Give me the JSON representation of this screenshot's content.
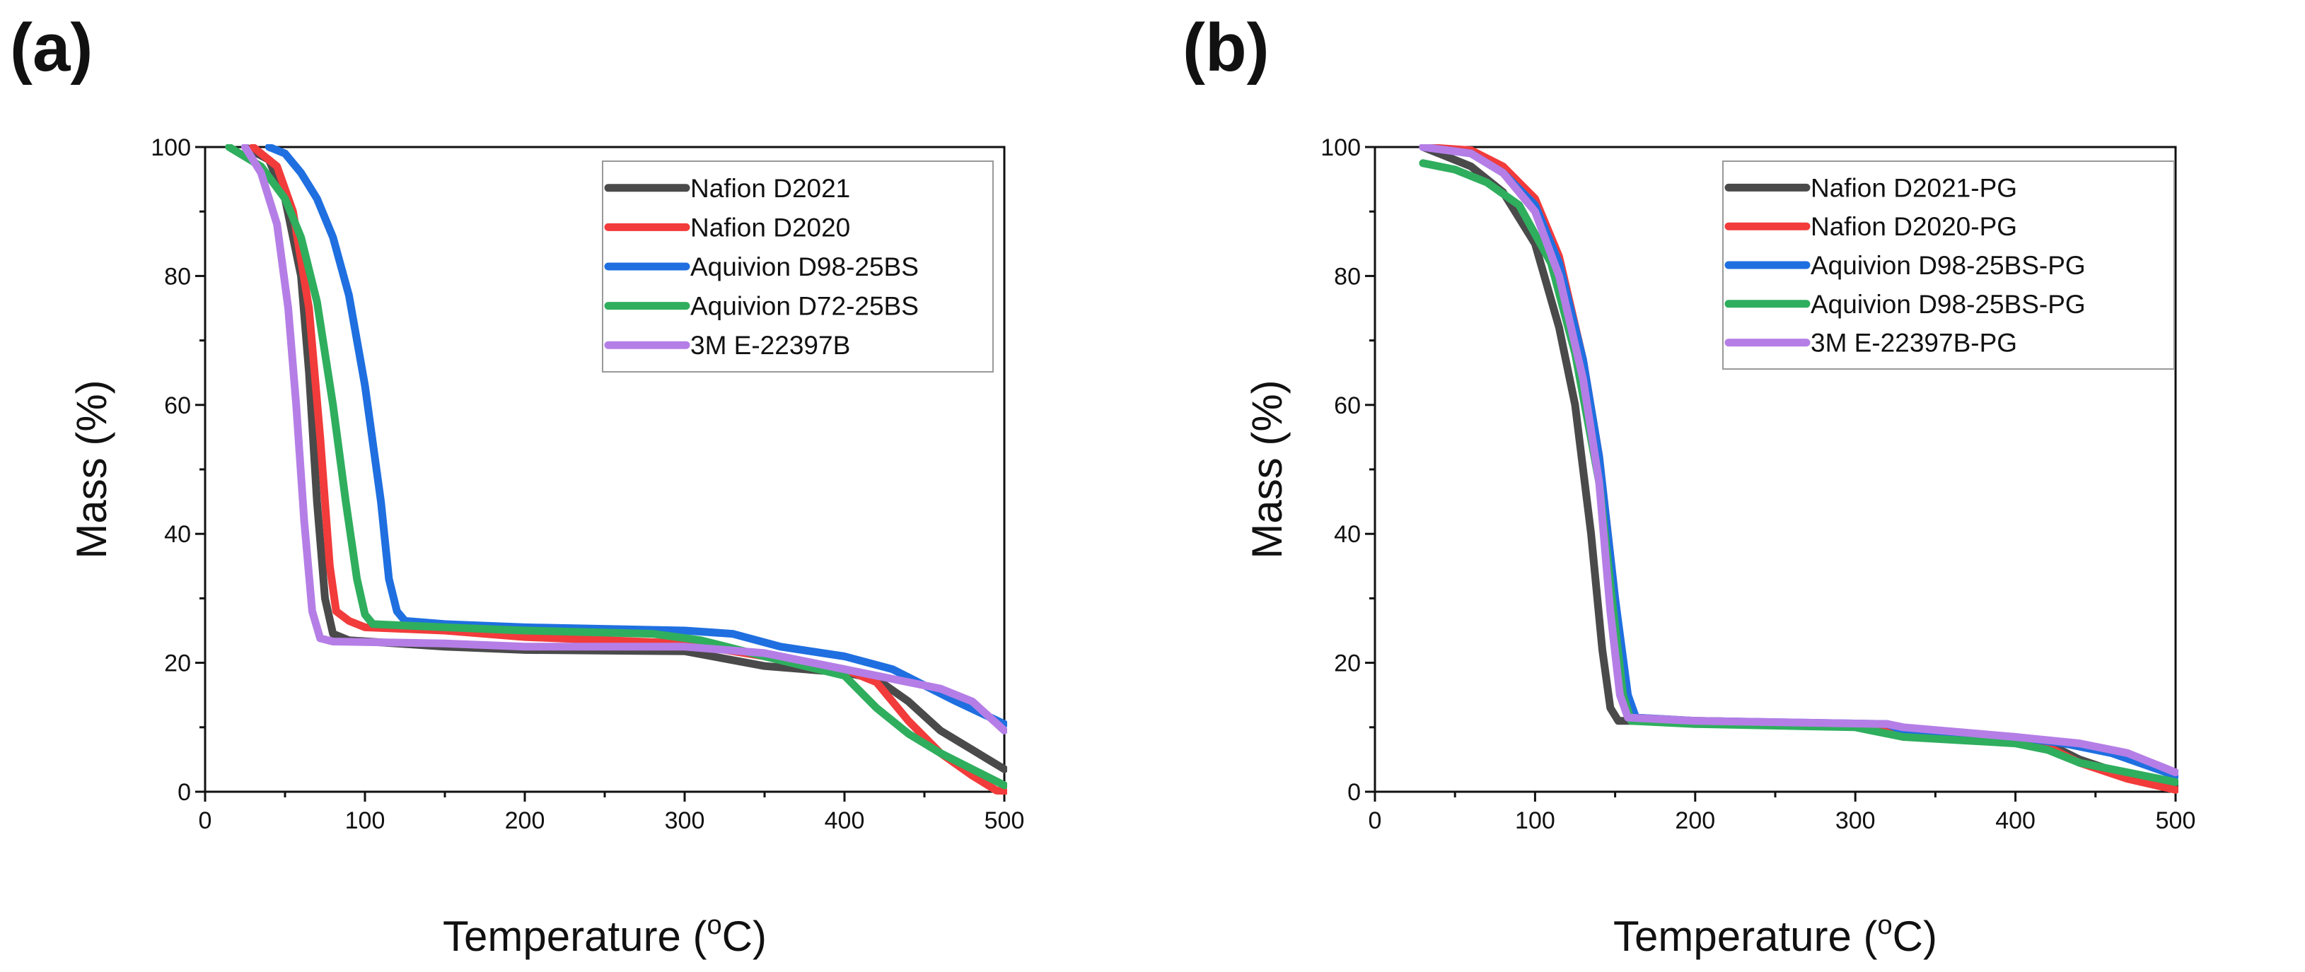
{
  "chart_data": [
    {
      "type": "line",
      "panel_label": "(a)",
      "xlabel": "Temperature (",
      "xlabel_sup": "o",
      "xlabel_unit": "C)",
      "ylabel": "Mass (%)",
      "xlim": [
        0,
        500
      ],
      "ylim": [
        0,
        100
      ],
      "xticks": [
        0,
        100,
        200,
        300,
        400,
        500
      ],
      "yticks": [
        0,
        20,
        40,
        60,
        80,
        100
      ],
      "grid": false,
      "legend_position": "top-right",
      "series": [
        {
          "name": "Nafion D2021",
          "color": "#4a4a4a",
          "points": [
            [
              25,
              100
            ],
            [
              40,
              98
            ],
            [
              50,
              92
            ],
            [
              60,
              80
            ],
            [
              65,
              65
            ],
            [
              70,
              45
            ],
            [
              75,
              30
            ],
            [
              80,
              24.5
            ],
            [
              90,
              23.5
            ],
            [
              150,
              22.5
            ],
            [
              200,
              22
            ],
            [
              300,
              21.8
            ],
            [
              350,
              19.5
            ],
            [
              400,
              18.5
            ],
            [
              420,
              17.5
            ],
            [
              440,
              14
            ],
            [
              460,
              9.5
            ],
            [
              480,
              6.5
            ],
            [
              500,
              3.5
            ]
          ]
        },
        {
          "name": "Nafion D2020",
          "color": "#f23b3b",
          "points": [
            [
              30,
              100
            ],
            [
              45,
              97
            ],
            [
              55,
              90
            ],
            [
              65,
              75
            ],
            [
              72,
              55
            ],
            [
              78,
              35
            ],
            [
              82,
              28
            ],
            [
              90,
              26.5
            ],
            [
              100,
              25.5
            ],
            [
              150,
              25
            ],
            [
              200,
              24
            ],
            [
              300,
              23
            ],
            [
              350,
              21
            ],
            [
              400,
              19
            ],
            [
              420,
              17
            ],
            [
              440,
              11
            ],
            [
              460,
              6
            ],
            [
              480,
              2.5
            ],
            [
              495,
              0.2
            ],
            [
              500,
              0
            ]
          ]
        },
        {
          "name": "Aquivion D98-25BS",
          "color": "#1f6fe0",
          "points": [
            [
              40,
              100
            ],
            [
              50,
              99
            ],
            [
              60,
              96
            ],
            [
              70,
              92
            ],
            [
              80,
              86
            ],
            [
              90,
              77
            ],
            [
              100,
              63
            ],
            [
              110,
              45
            ],
            [
              115,
              33
            ],
            [
              120,
              28
            ],
            [
              125,
              26.5
            ],
            [
              150,
              26
            ],
            [
              200,
              25.5
            ],
            [
              300,
              25
            ],
            [
              330,
              24.5
            ],
            [
              360,
              22.5
            ],
            [
              400,
              21
            ],
            [
              430,
              19
            ],
            [
              450,
              16.5
            ],
            [
              470,
              14
            ],
            [
              500,
              10.5
            ]
          ]
        },
        {
          "name": "Aquivion D72-25BS",
          "color": "#2fae5e",
          "points": [
            [
              15,
              100
            ],
            [
              25,
              98.5
            ],
            [
              35,
              97
            ],
            [
              50,
              92
            ],
            [
              60,
              86
            ],
            [
              70,
              76
            ],
            [
              80,
              60
            ],
            [
              88,
              45
            ],
            [
              95,
              33
            ],
            [
              100,
              27.5
            ],
            [
              105,
              26
            ],
            [
              150,
              25.5
            ],
            [
              200,
              25
            ],
            [
              280,
              24.5
            ],
            [
              310,
              23.5
            ],
            [
              350,
              21
            ],
            [
              400,
              18
            ],
            [
              420,
              13
            ],
            [
              440,
              9
            ],
            [
              460,
              6
            ],
            [
              480,
              3.5
            ],
            [
              500,
              1
            ]
          ]
        },
        {
          "name": "3M E-22397B",
          "color": "#b57ee6",
          "points": [
            [
              25,
              100
            ],
            [
              35,
              96
            ],
            [
              45,
              88
            ],
            [
              52,
              75
            ],
            [
              57,
              60
            ],
            [
              62,
              42
            ],
            [
              67,
              28
            ],
            [
              72,
              23.8
            ],
            [
              80,
              23.3
            ],
            [
              150,
              23
            ],
            [
              200,
              22.5
            ],
            [
              300,
              22.5
            ],
            [
              350,
              21.5
            ],
            [
              400,
              19
            ],
            [
              440,
              17
            ],
            [
              460,
              16
            ],
            [
              480,
              14
            ],
            [
              500,
              9.5
            ]
          ]
        }
      ]
    },
    {
      "type": "line",
      "panel_label": "(b)",
      "xlabel": "Temperature (",
      "xlabel_sup": "o",
      "xlabel_unit": "C)",
      "ylabel": "Mass (%)",
      "xlim": [
        0,
        500
      ],
      "ylim": [
        0,
        100
      ],
      "xticks": [
        0,
        100,
        200,
        300,
        400,
        500
      ],
      "yticks": [
        0,
        20,
        40,
        60,
        80,
        100
      ],
      "grid": false,
      "legend_position": "top-right",
      "series": [
        {
          "name": "Nafion D2021-PG",
          "color": "#4a4a4a",
          "points": [
            [
              30,
              100
            ],
            [
              60,
              97
            ],
            [
              80,
              93
            ],
            [
              100,
              85
            ],
            [
              115,
              72
            ],
            [
              125,
              60
            ],
            [
              135,
              40
            ],
            [
              142,
              22
            ],
            [
              147,
              13
            ],
            [
              152,
              11
            ],
            [
              170,
              11
            ],
            [
              200,
              11
            ],
            [
              300,
              10.5
            ],
            [
              320,
              10
            ],
            [
              330,
              9
            ],
            [
              400,
              8
            ],
            [
              420,
              7.5
            ],
            [
              440,
              5
            ],
            [
              470,
              2.5
            ],
            [
              500,
              1
            ]
          ]
        },
        {
          "name": "Nafion D2020-PG",
          "color": "#f23b3b",
          "points": [
            [
              30,
              100
            ],
            [
              60,
              99.5
            ],
            [
              80,
              97
            ],
            [
              100,
              92
            ],
            [
              115,
              83
            ],
            [
              130,
              67
            ],
            [
              140,
              52
            ],
            [
              150,
              30
            ],
            [
              157,
              15
            ],
            [
              162,
              11.5
            ],
            [
              200,
              11
            ],
            [
              300,
              10.5
            ],
            [
              330,
              9
            ],
            [
              400,
              8
            ],
            [
              420,
              7
            ],
            [
              440,
              4.5
            ],
            [
              470,
              2
            ],
            [
              500,
              0.3
            ]
          ]
        },
        {
          "name": "Aquivion D98-25BS-PG",
          "color": "#1f6fe0",
          "points": [
            [
              30,
              100
            ],
            [
              60,
              99
            ],
            [
              80,
              96
            ],
            [
              100,
              91
            ],
            [
              115,
              82
            ],
            [
              130,
              67
            ],
            [
              140,
              52
            ],
            [
              150,
              30
            ],
            [
              158,
              15
            ],
            [
              163,
              11.5
            ],
            [
              200,
              11
            ],
            [
              320,
              10.5
            ],
            [
              330,
              9.5
            ],
            [
              400,
              8.5
            ],
            [
              430,
              7.5
            ],
            [
              460,
              6
            ],
            [
              500,
              2.5
            ]
          ]
        },
        {
          "name": "Aquivion D98-25BS-PG",
          "color": "#2fae5e",
          "points": [
            [
              30,
              97.5
            ],
            [
              50,
              96.5
            ],
            [
              70,
              94.5
            ],
            [
              90,
              91
            ],
            [
              110,
              82
            ],
            [
              125,
              68
            ],
            [
              140,
              48
            ],
            [
              148,
              30
            ],
            [
              155,
              15
            ],
            [
              160,
              11
            ],
            [
              200,
              10.5
            ],
            [
              300,
              10
            ],
            [
              330,
              8.5
            ],
            [
              400,
              7.5
            ],
            [
              420,
              6.5
            ],
            [
              440,
              4.5
            ],
            [
              470,
              3
            ],
            [
              500,
              1.5
            ]
          ]
        },
        {
          "name": "3M E-22397B-PG",
          "color": "#b57ee6",
          "points": [
            [
              30,
              100
            ],
            [
              60,
              99
            ],
            [
              80,
              96
            ],
            [
              100,
              90
            ],
            [
              115,
              80
            ],
            [
              130,
              64
            ],
            [
              140,
              48
            ],
            [
              147,
              28
            ],
            [
              153,
              15
            ],
            [
              158,
              11.5
            ],
            [
              200,
              11
            ],
            [
              320,
              10.5
            ],
            [
              330,
              10
            ],
            [
              400,
              8.5
            ],
            [
              440,
              7.5
            ],
            [
              470,
              6
            ],
            [
              500,
              3
            ]
          ]
        }
      ]
    }
  ]
}
